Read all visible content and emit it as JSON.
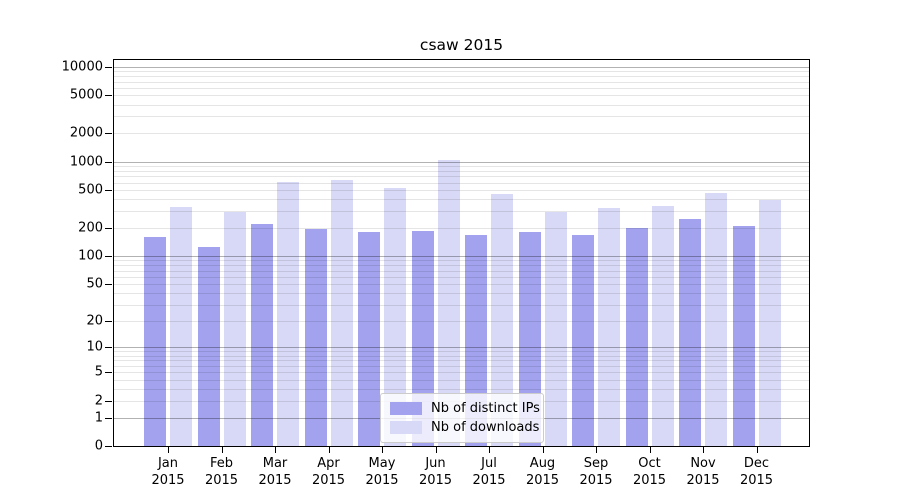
{
  "chart_data": {
    "type": "bar",
    "title": "csaw 2015",
    "categories": [
      "Jan",
      "Feb",
      "Mar",
      "Apr",
      "May",
      "Jun",
      "Jul",
      "Aug",
      "Sep",
      "Oct",
      "Nov",
      "Dec"
    ],
    "year_label": "2015",
    "series": [
      {
        "name": "Nb of distinct IPs",
        "color": "#a2a2ee",
        "values": [
          160,
          125,
          220,
          193,
          178,
          185,
          167,
          180,
          167,
          200,
          245,
          210
        ]
      },
      {
        "name": "Nb of downloads",
        "color": "#d8d8f7",
        "values": [
          330,
          295,
          615,
          640,
          530,
          1050,
          460,
          295,
          320,
          340,
          470,
          395
        ]
      }
    ],
    "y_ticks": [
      0,
      1,
      2,
      5,
      10,
      20,
      50,
      100,
      200,
      500,
      1000,
      2000,
      5000,
      10000
    ],
    "y_scale": "log1p",
    "y_max": 11800,
    "xlabel": "",
    "ylabel": "",
    "grid": "both",
    "major_grid_color": "rgba(0,0,0,0.30)",
    "minor_grid_color": "rgba(0,0,0,0.10)",
    "legend_position": "lower center",
    "background_color": "#ffffff",
    "axis_color": "#000000"
  }
}
